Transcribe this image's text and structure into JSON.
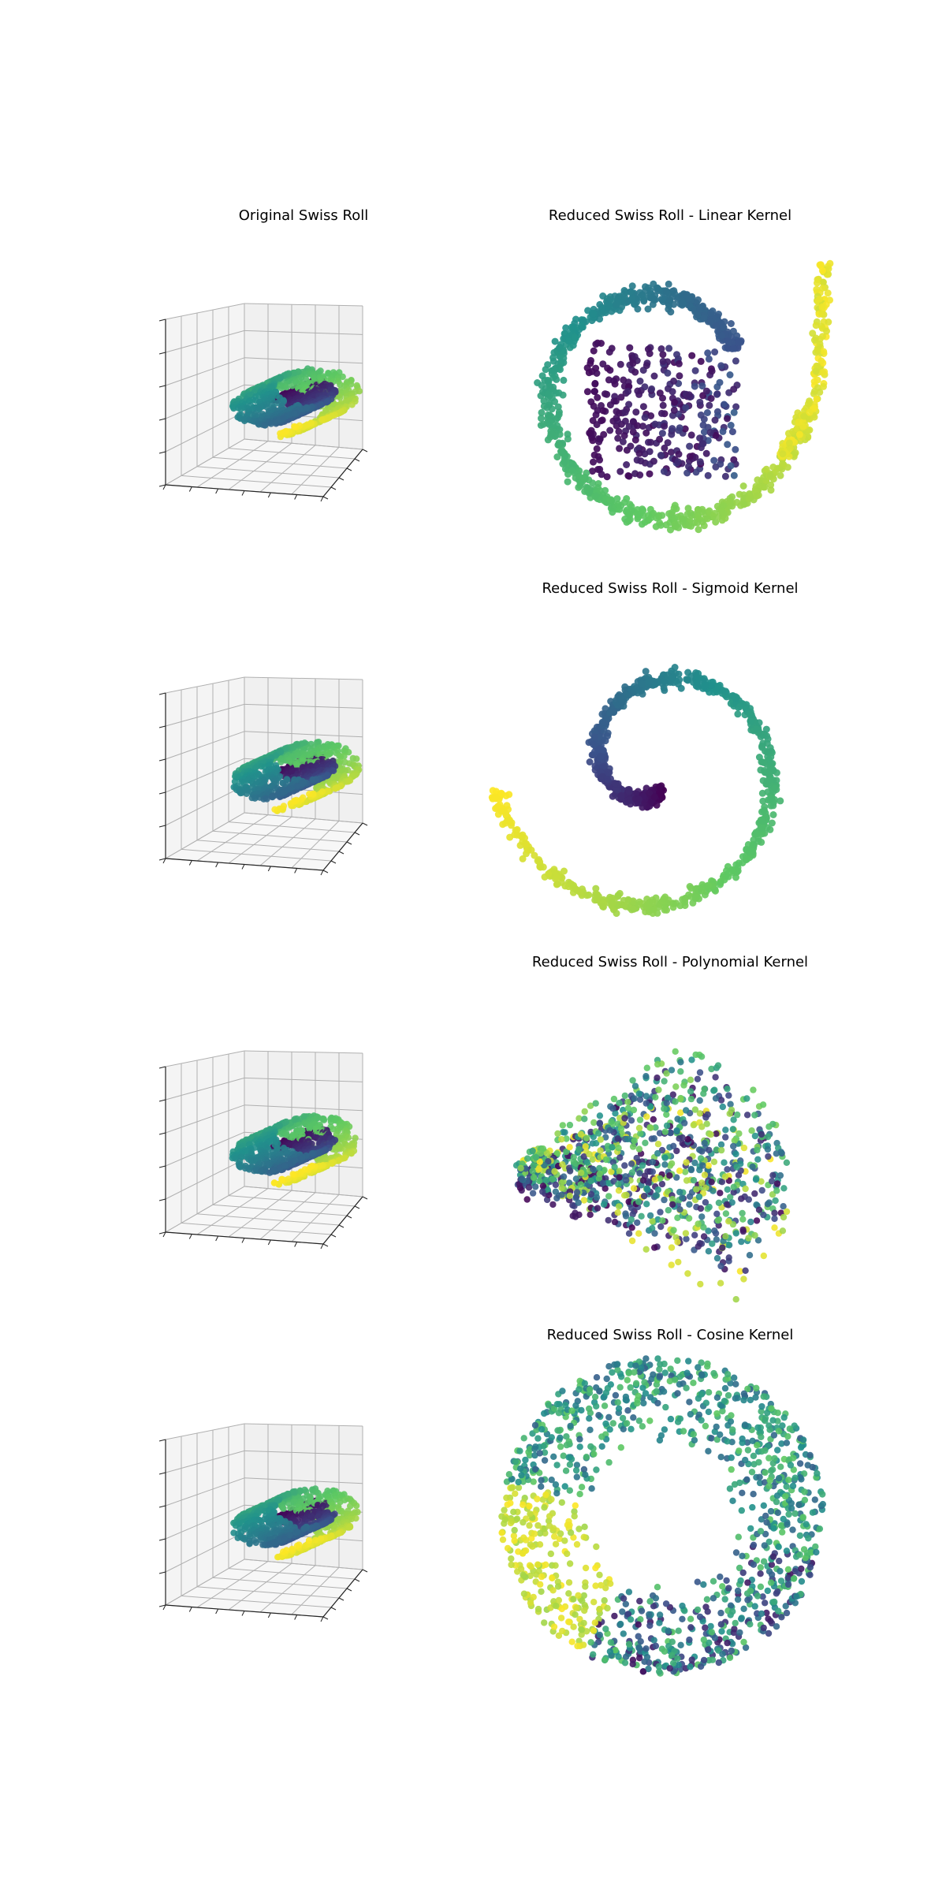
{
  "figure": {
    "colormap": "viridis",
    "colors": [
      "#440154",
      "#3b528b",
      "#21918c",
      "#5ec962",
      "#fde725"
    ]
  },
  "chart_data": [
    {
      "id": "orig-1",
      "type": "scatter3d",
      "title": "Original Swiss Roll",
      "xlabel": "",
      "ylabel": "",
      "zlabel": "",
      "grid": true,
      "tick_labels": false,
      "description_kind": "swiss-roll-3d"
    },
    {
      "id": "linear",
      "type": "scatter",
      "title": "Reduced Swiss Roll - Linear Kernel",
      "xlabel": "",
      "ylabel": "",
      "axes_visible": false,
      "pattern": "spiral-with-center-block"
    },
    {
      "id": "orig-2",
      "type": "scatter3d",
      "title": "",
      "xlabel": "",
      "ylabel": "",
      "zlabel": "",
      "grid": true,
      "tick_labels": false,
      "description_kind": "swiss-roll-3d"
    },
    {
      "id": "sigmoid",
      "type": "scatter",
      "title": "Reduced Swiss Roll - Sigmoid Kernel",
      "xlabel": "",
      "ylabel": "",
      "axes_visible": false,
      "pattern": "clean-spiral"
    },
    {
      "id": "orig-3",
      "type": "scatter3d",
      "title": "",
      "xlabel": "",
      "ylabel": "",
      "zlabel": "",
      "grid": true,
      "tick_labels": false,
      "description_kind": "swiss-roll-3d"
    },
    {
      "id": "polynomial",
      "type": "scatter",
      "title": "Reduced Swiss Roll - Polynomial Kernel",
      "xlabel": "",
      "ylabel": "",
      "axes_visible": false,
      "pattern": "fan"
    },
    {
      "id": "orig-4",
      "type": "scatter3d",
      "title": "",
      "xlabel": "",
      "ylabel": "",
      "zlabel": "",
      "grid": true,
      "tick_labels": false,
      "description_kind": "swiss-roll-3d"
    },
    {
      "id": "cosine",
      "type": "scatter",
      "title": "Reduced Swiss Roll - Cosine Kernel",
      "xlabel": "",
      "ylabel": "",
      "axes_visible": false,
      "pattern": "ring"
    }
  ]
}
